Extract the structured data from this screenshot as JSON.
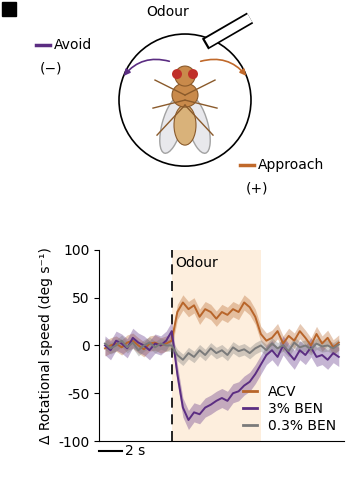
{
  "diagram": {
    "odour": "Odour",
    "avoid": {
      "label": "Avoid",
      "sign": "(−)",
      "color": "#5b2d82"
    },
    "approach": {
      "label": "Approach",
      "sign": "(+)",
      "color": "#c0692b"
    }
  },
  "chart_data": {
    "type": "line",
    "ylabel": "Δ Rotational speed (deg s⁻¹)",
    "x": [
      -6,
      -5.5,
      -5,
      -4.5,
      -4,
      -3.5,
      -3,
      -2.5,
      -2,
      -1.5,
      -1,
      -0.5,
      0,
      0.5,
      1,
      1.5,
      2,
      2.5,
      3,
      3.5,
      4,
      4.5,
      5,
      5.5,
      6,
      6.5,
      7,
      7.5,
      8,
      8.5,
      9,
      9.5,
      10,
      10.5,
      11,
      11.5,
      12,
      12.5,
      13,
      13.5,
      14,
      14.5,
      15
    ],
    "series": [
      {
        "name": "ACV",
        "color": "#b8652a",
        "error": 8,
        "values": [
          -3,
          0,
          2,
          -2,
          3,
          5,
          0,
          -4,
          2,
          3,
          0,
          2,
          5,
          35,
          45,
          38,
          42,
          30,
          38,
          35,
          28,
          35,
          32,
          38,
          35,
          45,
          40,
          30,
          12,
          5,
          8,
          15,
          2,
          10,
          5,
          15,
          8,
          0,
          12,
          2,
          8,
          -2,
          3
        ]
      },
      {
        "name": "3% BEN",
        "color": "#5b2d82",
        "error": 10,
        "values": [
          0,
          -5,
          5,
          2,
          -3,
          8,
          3,
          0,
          -5,
          2,
          0,
          5,
          15,
          -30,
          -65,
          -78,
          -70,
          -72,
          -65,
          -62,
          -58,
          -55,
          -58,
          -50,
          -48,
          -42,
          -38,
          -30,
          -20,
          -10,
          -5,
          -12,
          0,
          -8,
          -15,
          -5,
          -10,
          -2,
          -12,
          -10,
          -15,
          -8,
          -12
        ]
      },
      {
        "name": "0.3% BEN",
        "color": "#7a7a7a",
        "error": 6,
        "values": [
          2,
          -3,
          0,
          5,
          -2,
          3,
          -5,
          0,
          3,
          -2,
          2,
          0,
          0,
          -10,
          -15,
          -8,
          -12,
          -5,
          -10,
          -3,
          -8,
          -5,
          -10,
          -2,
          -6,
          -4,
          -8,
          -3,
          0,
          -5,
          2,
          -3,
          0,
          -6,
          3,
          -2,
          0,
          -4,
          2,
          -1,
          0,
          -3,
          1
        ]
      }
    ],
    "xlim": [
      -6.5,
      15.5
    ],
    "ylim": [
      -100,
      100
    ],
    "yticks": [
      -100,
      -50,
      0,
      50,
      100
    ],
    "tick_labels": "y",
    "legend": "lower right",
    "odour_window": [
      0,
      8
    ],
    "odour_label": "Odour",
    "scale_bar": {
      "length": 2,
      "label": "2 s"
    }
  }
}
